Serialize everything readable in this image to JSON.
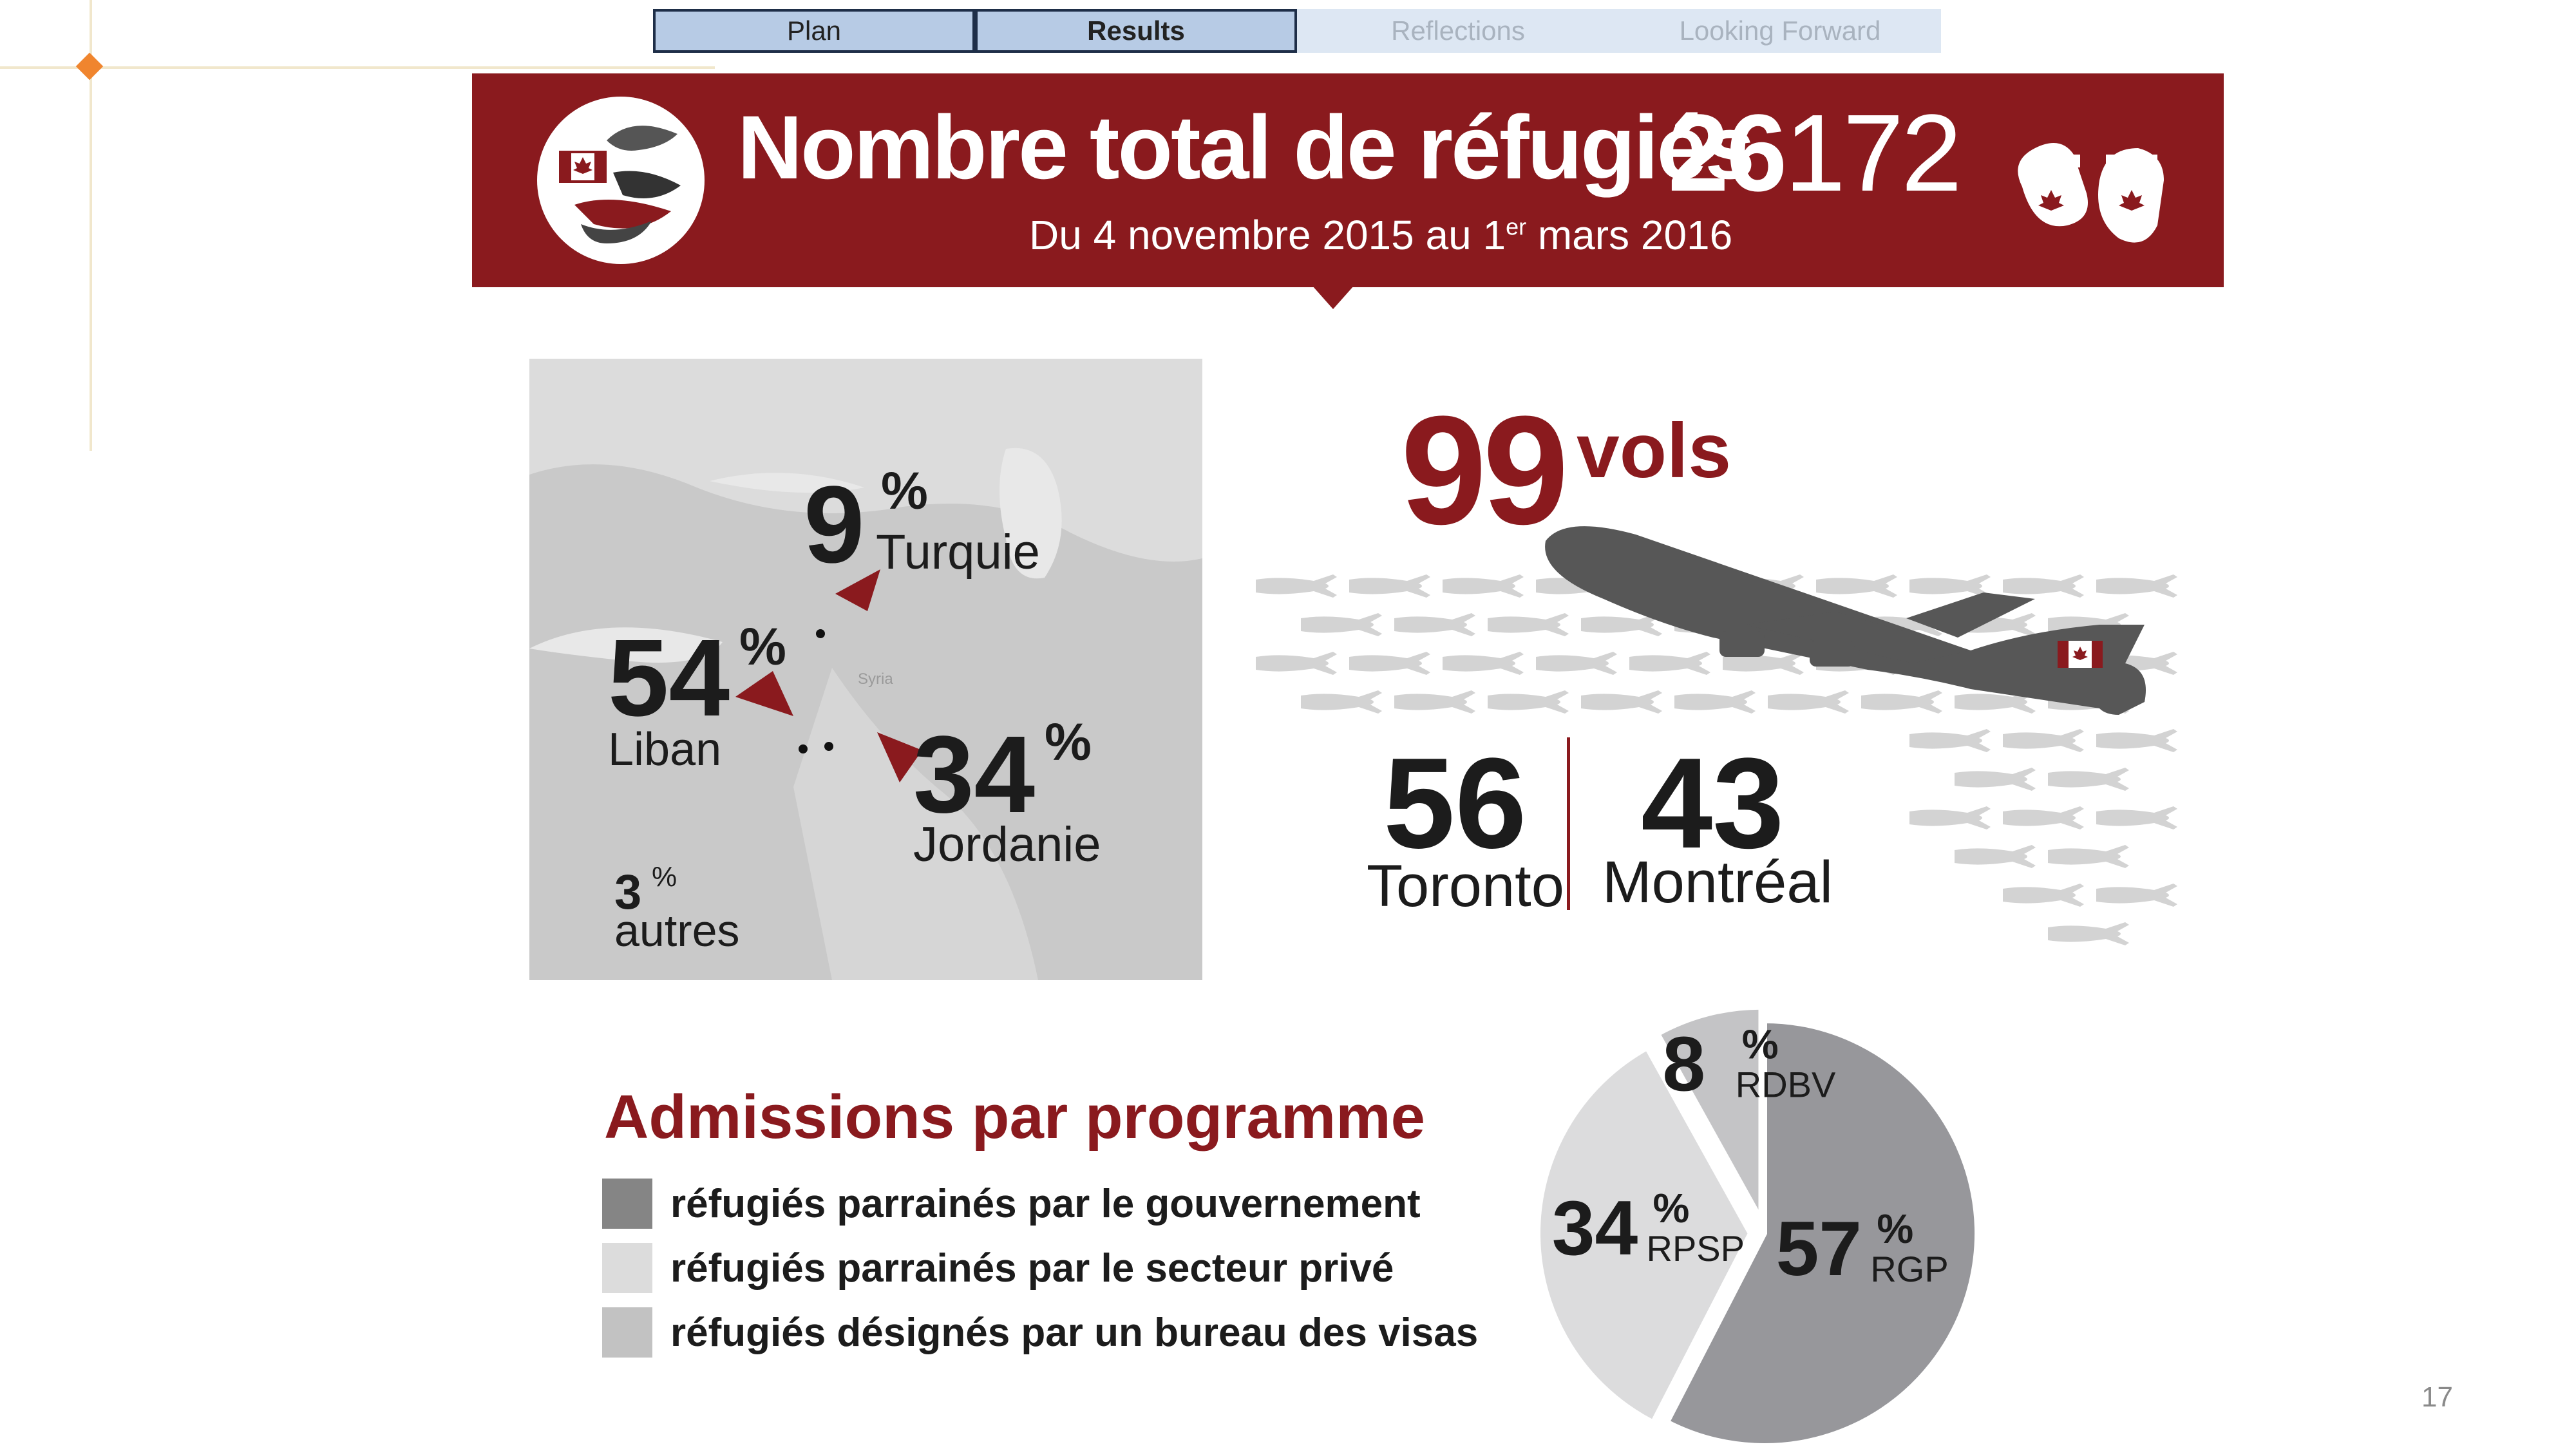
{
  "nav": {
    "tabs": [
      {
        "label": "Plan"
      },
      {
        "label": "Results"
      },
      {
        "label": "Reflections"
      },
      {
        "label": "Looking Forward"
      }
    ]
  },
  "banner": {
    "title": "Nombre total de réfugiés",
    "total_part1": "26",
    "total_part2": "172",
    "subtitle_before": "Du 4 novembre 2015 au 1",
    "subtitle_sup": "er",
    "subtitle_after": " mars 2016"
  },
  "map": {
    "turkey": {
      "value": "9",
      "pct": "%",
      "label": "Turquie"
    },
    "lebanon": {
      "value": "54",
      "pct": "%",
      "label": "Liban"
    },
    "jordan": {
      "value": "34",
      "pct": "%",
      "label": "Jordanie"
    },
    "others": {
      "value": "3",
      "pct": "%",
      "label": "autres"
    },
    "syria_label": "Syria"
  },
  "flights": {
    "count": "99",
    "label": "vols",
    "toronto_count": "56",
    "toronto_label": "Toronto",
    "montreal_count": "43",
    "montreal_label": "Montréal"
  },
  "admissions": {
    "title": "Admissions par programme",
    "legend": [
      {
        "label": "réfugiés parrainés par le gouvernement",
        "color": "#858585"
      },
      {
        "label": "réfugiés parrainés par le secteur privé",
        "color": "#dcdcdc"
      },
      {
        "label": "réfugiés désignés par un bureau des visas",
        "color": "#c2c2c2"
      }
    ]
  },
  "chart_data": {
    "type": "pie",
    "slices": [
      {
        "label": "RGP",
        "value": 57,
        "color": "#97979b"
      },
      {
        "label": "RPSP",
        "value": 34,
        "color": "#dcdcdd"
      },
      {
        "label": "RDBV",
        "value": 8,
        "color": "#c4c4c6"
      }
    ],
    "unit": "%"
  },
  "page_number": "17"
}
